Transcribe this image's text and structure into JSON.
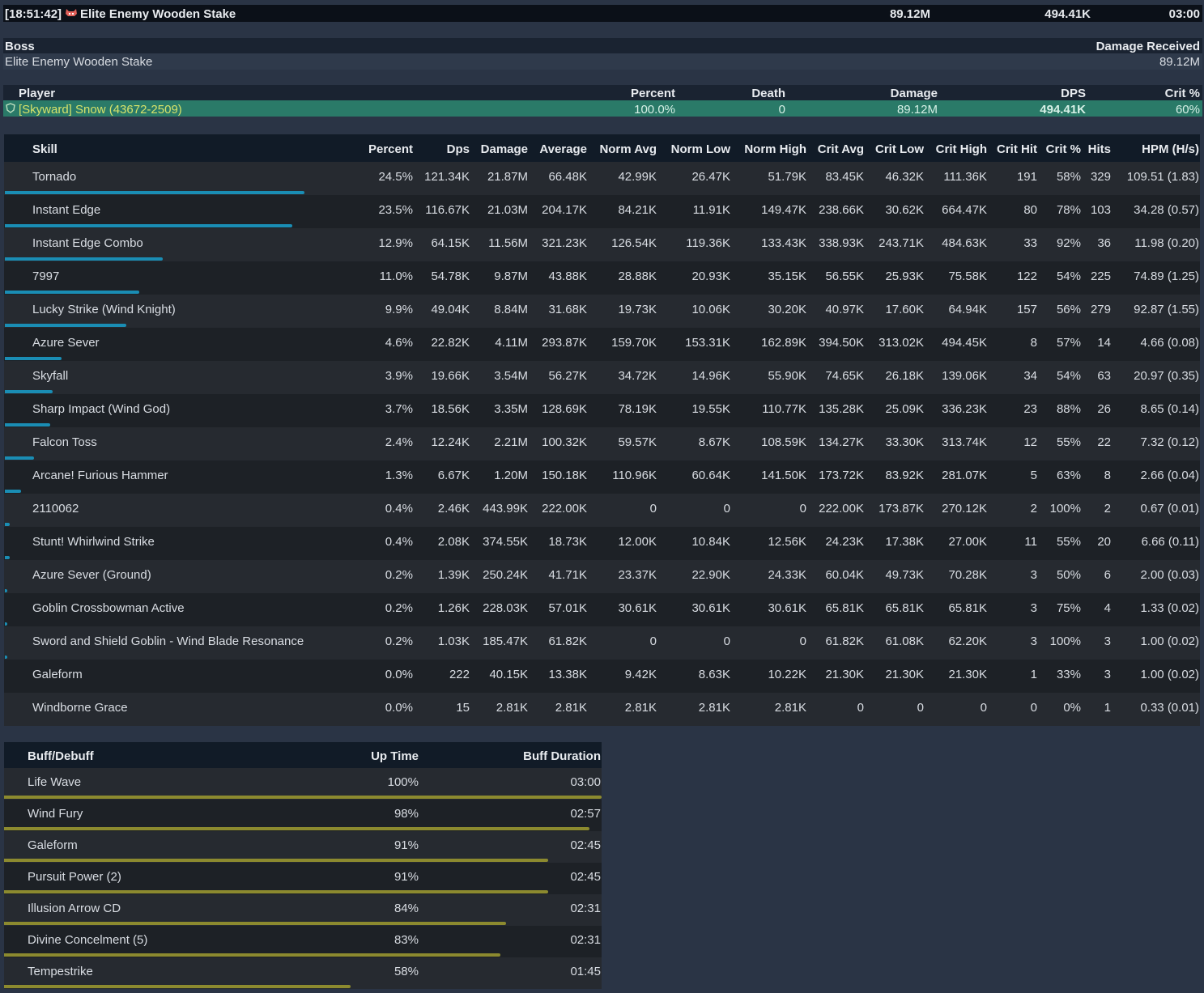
{
  "header": {
    "time": "[18:51:42]",
    "target": "Elite Enemy Wooden Stake",
    "damage": "89.12M",
    "dps": "494.41K",
    "duration": "03:00"
  },
  "boss": {
    "columns": [
      "Boss",
      "Damage Received"
    ],
    "row": [
      "Elite Enemy Wooden Stake",
      "89.12M"
    ]
  },
  "players": {
    "columns": [
      "Player",
      "Percent",
      "Death",
      "Damage",
      "DPS",
      "Crit %"
    ],
    "rows": [
      [
        "[Skyward] Snow (43672-2509)",
        "100.0%",
        "0",
        "89.12M",
        "494.41K",
        "60%"
      ]
    ]
  },
  "skills": {
    "columns": [
      "Skill",
      "Percent",
      "Dps",
      "Damage",
      "Average",
      "Norm Avg",
      "Norm Low",
      "Norm High",
      "Crit Avg",
      "Crit Low",
      "Crit High",
      "Crit Hit",
      "Crit %",
      "Hits",
      "HPM (H/s)"
    ],
    "rows": [
      [
        "Tornado",
        "24.5%",
        "121.34K",
        "21.87M",
        "66.48K",
        "42.99K",
        "26.47K",
        "51.79K",
        "83.45K",
        "46.32K",
        "111.36K",
        "191",
        "58%",
        "329",
        "109.51 (1.83)"
      ],
      [
        "Instant Edge",
        "23.5%",
        "116.67K",
        "21.03M",
        "204.17K",
        "84.21K",
        "11.91K",
        "149.47K",
        "238.66K",
        "30.62K",
        "664.47K",
        "80",
        "78%",
        "103",
        "34.28 (0.57)"
      ],
      [
        "Instant Edge Combo",
        "12.9%",
        "64.15K",
        "11.56M",
        "321.23K",
        "126.54K",
        "119.36K",
        "133.43K",
        "338.93K",
        "243.71K",
        "484.63K",
        "33",
        "92%",
        "36",
        "11.98 (0.20)"
      ],
      [
        "7997",
        "11.0%",
        "54.78K",
        "9.87M",
        "43.88K",
        "28.88K",
        "20.93K",
        "35.15K",
        "56.55K",
        "25.93K",
        "75.58K",
        "122",
        "54%",
        "225",
        "74.89 (1.25)"
      ],
      [
        "Lucky Strike (Wind Knight)",
        "9.9%",
        "49.04K",
        "8.84M",
        "31.68K",
        "19.73K",
        "10.06K",
        "30.20K",
        "40.97K",
        "17.60K",
        "64.94K",
        "157",
        "56%",
        "279",
        "92.87 (1.55)"
      ],
      [
        "Azure Sever",
        "4.6%",
        "22.82K",
        "4.11M",
        "293.87K",
        "159.70K",
        "153.31K",
        "162.89K",
        "394.50K",
        "313.02K",
        "494.45K",
        "8",
        "57%",
        "14",
        "4.66 (0.08)"
      ],
      [
        "Skyfall",
        "3.9%",
        "19.66K",
        "3.54M",
        "56.27K",
        "34.72K",
        "14.96K",
        "55.90K",
        "74.65K",
        "26.18K",
        "139.06K",
        "34",
        "54%",
        "63",
        "20.97 (0.35)"
      ],
      [
        "Sharp Impact (Wind God)",
        "3.7%",
        "18.56K",
        "3.35M",
        "128.69K",
        "78.19K",
        "19.55K",
        "110.77K",
        "135.28K",
        "25.09K",
        "336.23K",
        "23",
        "88%",
        "26",
        "8.65 (0.14)"
      ],
      [
        "Falcon Toss",
        "2.4%",
        "12.24K",
        "2.21M",
        "100.32K",
        "59.57K",
        "8.67K",
        "108.59K",
        "134.27K",
        "33.30K",
        "313.74K",
        "12",
        "55%",
        "22",
        "7.32 (0.12)"
      ],
      [
        "Arcane! Furious Hammer",
        "1.3%",
        "6.67K",
        "1.20M",
        "150.18K",
        "110.96K",
        "60.64K",
        "141.50K",
        "173.72K",
        "83.92K",
        "281.07K",
        "5",
        "63%",
        "8",
        "2.66 (0.04)"
      ],
      [
        "2110062",
        "0.4%",
        "2.46K",
        "443.99K",
        "222.00K",
        "0",
        "0",
        "0",
        "222.00K",
        "173.87K",
        "270.12K",
        "2",
        "100%",
        "2",
        "0.67 (0.01)"
      ],
      [
        "Stunt! Whirlwind Strike",
        "0.4%",
        "2.08K",
        "374.55K",
        "18.73K",
        "12.00K",
        "10.84K",
        "12.56K",
        "24.23K",
        "17.38K",
        "27.00K",
        "11",
        "55%",
        "20",
        "6.66 (0.11)"
      ],
      [
        "Azure Sever (Ground)",
        "0.2%",
        "1.39K",
        "250.24K",
        "41.71K",
        "23.37K",
        "22.90K",
        "24.33K",
        "60.04K",
        "49.73K",
        "70.28K",
        "3",
        "50%",
        "6",
        "2.00 (0.03)"
      ],
      [
        "Goblin Crossbowman Active",
        "0.2%",
        "1.26K",
        "228.03K",
        "57.01K",
        "30.61K",
        "30.61K",
        "30.61K",
        "65.81K",
        "65.81K",
        "65.81K",
        "3",
        "75%",
        "4",
        "1.33 (0.02)"
      ],
      [
        "Sword and Shield Goblin - Wind Blade Resonance",
        "0.2%",
        "1.03K",
        "185.47K",
        "61.82K",
        "0",
        "0",
        "0",
        "61.82K",
        "61.08K",
        "62.20K",
        "3",
        "100%",
        "3",
        "1.00 (0.02)"
      ],
      [
        "Galeform",
        "0.0%",
        "222",
        "40.15K",
        "13.38K",
        "9.42K",
        "8.63K",
        "10.22K",
        "21.30K",
        "21.30K",
        "21.30K",
        "1",
        "33%",
        "3",
        "1.00 (0.02)"
      ],
      [
        "Windborne Grace",
        "0.0%",
        "15",
        "2.81K",
        "2.81K",
        "2.81K",
        "2.81K",
        "2.81K",
        "0",
        "0",
        "0",
        "0",
        "0%",
        "1",
        "0.33 (0.01)"
      ]
    ]
  },
  "buffs": {
    "columns": [
      "Buff/Debuff",
      "Up Time",
      "Buff Duration"
    ],
    "rows": [
      [
        "Life Wave",
        "100%",
        "03:00"
      ],
      [
        "Wind Fury",
        "98%",
        "02:57"
      ],
      [
        "Galeform",
        "91%",
        "02:45"
      ],
      [
        "Pursuit Power (2)",
        "91%",
        "02:45"
      ],
      [
        "Illusion Arrow CD",
        "84%",
        "02:31"
      ],
      [
        "Divine Concelment (5)",
        "83%",
        "02:31"
      ],
      [
        "Tempestrike",
        "58%",
        "01:45"
      ]
    ]
  }
}
